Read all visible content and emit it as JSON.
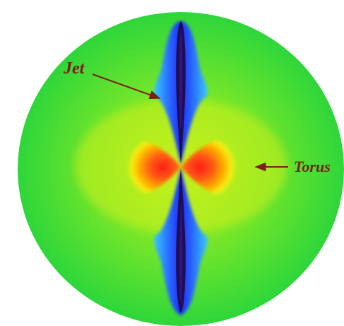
{
  "annotations": {
    "jet_label": "Jet",
    "torus_label": "Torus"
  },
  "colors": {
    "background_field": "#36d83a",
    "field_yellow": "#b8f21a",
    "torus_orange": "#ffb000",
    "torus_red": "#ff3a1a",
    "jet_blue": "#2a64ff",
    "jet_core": "#1d0d52",
    "arrow": "#7a1f12"
  }
}
